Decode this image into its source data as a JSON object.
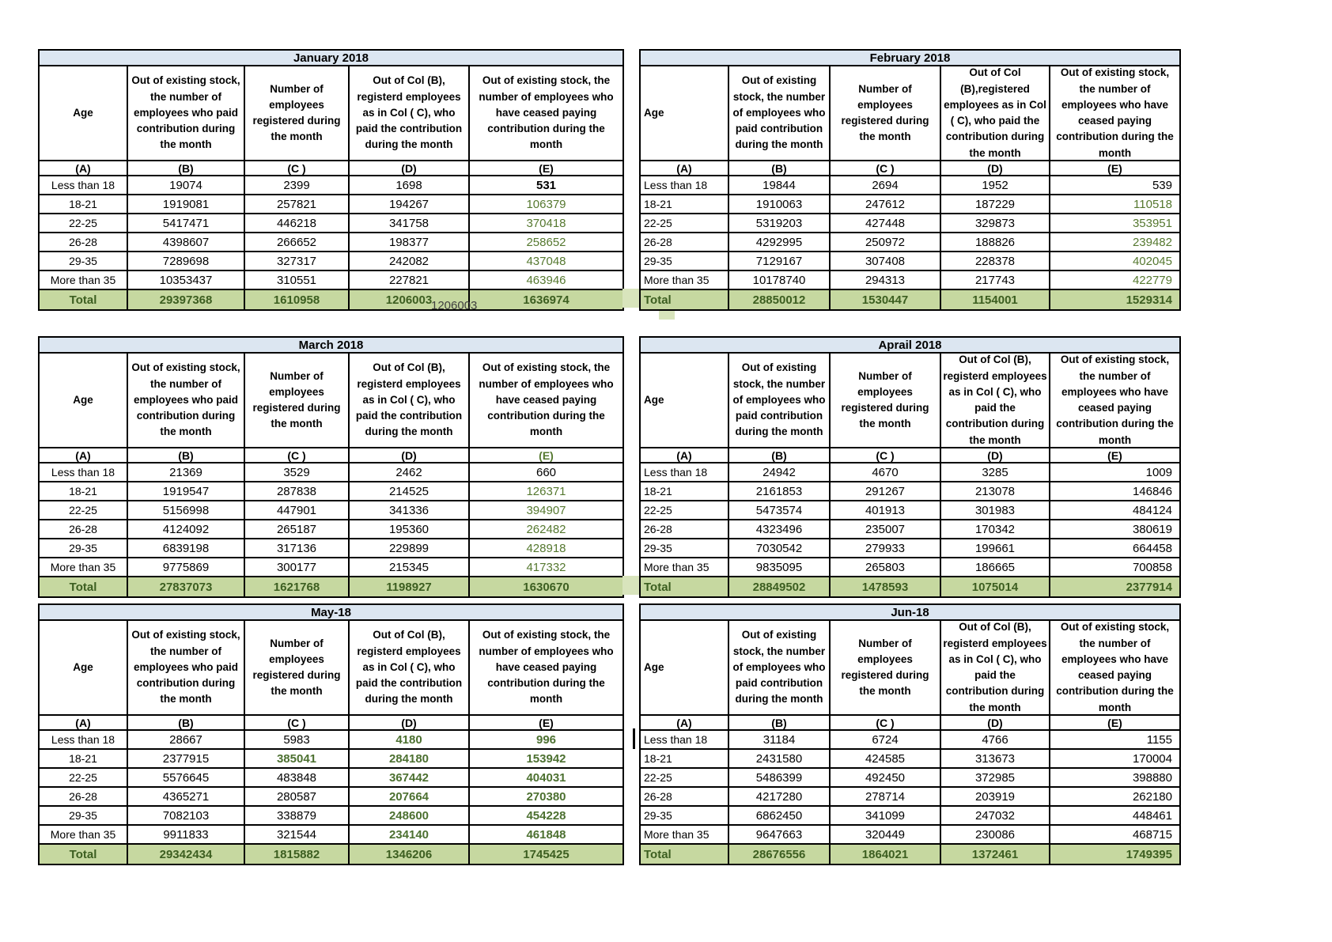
{
  "colors": {
    "title_bar_bg": "#dce6f1",
    "total_row_bg": "#c6d8a0",
    "green_text": "#55782f",
    "total_text": "#3c5e20",
    "border": "#000000"
  },
  "artifact": {
    "overflow_number": "1206003"
  },
  "tables": [
    {
      "title": "January 2018",
      "side": "left",
      "headers": {
        "age": "Age",
        "b": "Out of existing stock, the number of employees who paid contribution during the month",
        "c": "Number of employees registered during the month",
        "d": "Out of Col (B), registerd employees as in Col ( C), who paid the contribution during the month",
        "e": "Out of existing stock, the number of  employees  who have ceased paying contribution during the month"
      },
      "letters": {
        "age": "(A)",
        "b": "(B)",
        "c": "(C )",
        "d": "(D)",
        "e": "(E)"
      },
      "rows": [
        {
          "age": "Less than 18",
          "b": "19074",
          "c": "2399",
          "d": "1698",
          "e": "531",
          "s": {
            "e": "bb"
          }
        },
        {
          "age": "18-21",
          "b": "1919081",
          "c": "257821",
          "d": "194267",
          "e": "106379",
          "s": {
            "e": "g"
          }
        },
        {
          "age": "22-25",
          "b": "5417471",
          "c": "446218",
          "d": "341758",
          "e": "370418",
          "s": {
            "e": "g"
          }
        },
        {
          "age": "26-28",
          "b": "4398607",
          "c": "266652",
          "d": "198377",
          "e": "258652",
          "s": {
            "e": "g"
          }
        },
        {
          "age": "29-35",
          "b": "7289698",
          "c": "327317",
          "d": "242082",
          "e": "437048",
          "s": {
            "e": "g"
          }
        },
        {
          "age": "More than 35",
          "b": "10353437",
          "c": "310551",
          "d": "227821",
          "e": "463946",
          "s": {
            "e": "g"
          }
        }
      ],
      "total": {
        "label": "Total",
        "b": "29397368",
        "c": "1610958",
        "d": "1206003",
        "e": "1636974"
      }
    },
    {
      "title": "February 2018",
      "side": "right",
      "headers": {
        "age": "Age",
        "b": "Out of existing stock, the number of employees who paid contribution during the month",
        "c": "Number of employees registered during the month",
        "d": "Out of Col (B),registered employees as in Col ( C), who paid the contribution during the month",
        "e": "Out of existing stock, the number of employees  who have ceased paying contribution during the month"
      },
      "letters": {
        "age": "(A)",
        "b": "(B)",
        "c": "(C )",
        "d": "(D)",
        "e": "(E)"
      },
      "rows": [
        {
          "age": "Less than 18",
          "b": "19844",
          "c": "2694",
          "d": "1952",
          "e": "539"
        },
        {
          "age": "18-21",
          "b": "1910063",
          "c": "247612",
          "d": "187229",
          "e": "110518",
          "s": {
            "e": "g"
          }
        },
        {
          "age": "22-25",
          "b": "5319203",
          "c": "427448",
          "d": "329873",
          "e": "353951",
          "s": {
            "e": "g"
          }
        },
        {
          "age": "26-28",
          "b": "4292995",
          "c": "250972",
          "d": "188826",
          "e": "239482",
          "s": {
            "e": "g"
          }
        },
        {
          "age": "29-35",
          "b": "7129167",
          "c": "307408",
          "d": "228378",
          "e": "402045",
          "s": {
            "e": "g"
          }
        },
        {
          "age": "More than 35",
          "b": "10178740",
          "c": "294313",
          "d": "217743",
          "e": "422779",
          "s": {
            "e": "g"
          }
        }
      ],
      "total": {
        "label": "Total",
        "b": "28850012",
        "c": "1530447",
        "d": "1154001",
        "e": "1529314"
      }
    },
    {
      "title": "March 2018",
      "side": "left",
      "headers": {
        "age": "Age",
        "b": "Out of existing stock, the number of employees who paid contribution during the month",
        "c": "Number of employees registered during the month",
        "d": "Out of Col (B), registerd employees as in Col ( C), who paid the contribution during the month",
        "e": "Out of existing stock, the number of  employees  who have ceased paying contribution during the month"
      },
      "letters": {
        "age": "(A)",
        "b": "(B)",
        "c": "(C )",
        "d": "(D)",
        "e": "(E)"
      },
      "letters_style": {
        "e": "lg"
      },
      "rows": [
        {
          "age": "Less than 18",
          "b": "21369",
          "c": "3529",
          "d": "2462",
          "e": "660"
        },
        {
          "age": "18-21",
          "b": "1919547",
          "c": "287838",
          "d": "214525",
          "e": "126371",
          "s": {
            "e": "g"
          }
        },
        {
          "age": "22-25",
          "b": "5156998",
          "c": "447901",
          "d": "341336",
          "e": "394907",
          "s": {
            "e": "g"
          }
        },
        {
          "age": "26-28",
          "b": "4124092",
          "c": "265187",
          "d": "195360",
          "e": "262482",
          "s": {
            "e": "g"
          }
        },
        {
          "age": "29-35",
          "b": "6839198",
          "c": "317136",
          "d": "229899",
          "e": "428918",
          "s": {
            "e": "g"
          }
        },
        {
          "age": "More than 35",
          "b": "9775869",
          "c": "300177",
          "d": "215345",
          "e": "417332",
          "s": {
            "e": "g"
          }
        }
      ],
      "total": {
        "label": "Total",
        "b": "27837073",
        "c": "1621768",
        "d": "1198927",
        "e": "1630670"
      }
    },
    {
      "title": "Aprail 2018",
      "side": "right",
      "headers": {
        "age": "Age",
        "b": "Out of existing stock, the number of employees who paid contribution during the month",
        "c": "Number of employees registered during the month",
        "d": "Out of Col (B), registerd employees as in Col ( C), who paid the contribution during the month",
        "e": "Out of existing stock, the number of employees  who have ceased paying contribution during the month"
      },
      "letters": {
        "age": "(A)",
        "b": "(B)",
        "c": "(C )",
        "d": "(D)",
        "e": "(E)"
      },
      "rows": [
        {
          "age": "Less than 18",
          "b": "24942",
          "c": "4670",
          "d": "3285",
          "e": "1009"
        },
        {
          "age": "18-21",
          "b": "2161853",
          "c": "291267",
          "d": "213078",
          "e": "146846"
        },
        {
          "age": "22-25",
          "b": "5473574",
          "c": "401913",
          "d": "301983",
          "e": "484124"
        },
        {
          "age": "26-28",
          "b": "4323496",
          "c": "235007",
          "d": "170342",
          "e": "380619"
        },
        {
          "age": "29-35",
          "b": "7030542",
          "c": "279933",
          "d": "199661",
          "e": "664458"
        },
        {
          "age": "More than 35",
          "b": "9835095",
          "c": "265803",
          "d": "186665",
          "e": "700858"
        }
      ],
      "total": {
        "label": "Total",
        "b": "28849502",
        "c": "1478593",
        "d": "1075014",
        "e": "2377914"
      }
    },
    {
      "title": "May-18",
      "side": "left",
      "headers": {
        "age": "Age",
        "b": "Out of existing stock, the number of employees who paid contribution during the month",
        "c": "Number of employees registered during the month",
        "d": "Out of Col (B), registerd employees as in Col ( C), who paid the contribution during the month",
        "e": "Out of existing stock, the number of  employees  who have ceased paying contribution during the month"
      },
      "letters": {
        "age": "(A)",
        "b": "(B)",
        "c": "(C )",
        "d": "(D)",
        "e": "(E)"
      },
      "rows": [
        {
          "age": "Less than 18",
          "b": "28667",
          "c": "5983",
          "d": "4180",
          "e": "996",
          "s": {
            "d": "gb",
            "e": "gb"
          }
        },
        {
          "age": "18-21",
          "b": "2377915",
          "c": "385041",
          "d": "284180",
          "e": "153942",
          "s": {
            "c": "gb",
            "d": "gb",
            "e": "gb"
          }
        },
        {
          "age": "22-25",
          "b": "5576645",
          "c": "483848",
          "d": "367442",
          "e": "404031",
          "s": {
            "d": "gb",
            "e": "gb"
          }
        },
        {
          "age": "26-28",
          "b": "4365271",
          "c": "280587",
          "d": "207664",
          "e": "270380",
          "s": {
            "d": "gb",
            "e": "gb"
          }
        },
        {
          "age": "29-35",
          "b": "7082103",
          "c": "338879",
          "d": "248600",
          "e": "454228",
          "s": {
            "d": "gb",
            "e": "gb"
          }
        },
        {
          "age": "More than 35",
          "b": "9911833",
          "c": "321544",
          "d": "234140",
          "e": "461848",
          "s": {
            "d": "gb",
            "e": "gb"
          }
        }
      ],
      "total": {
        "label": "Total",
        "b": "29342434",
        "c": "1815882",
        "d": "1346206",
        "e": "1745425"
      }
    },
    {
      "title": "Jun-18",
      "side": "right",
      "headers": {
        "age": "Age",
        "b": "Out of existing stock, the number of employees who paid contribution during the month",
        "c": "Number of employees registered during the month",
        "d": "Out of Col (B), registerd employees as in Col ( C), who paid the contribution during the month",
        "e": "Out of existing stock, the number of employees  who have ceased paying contribution during the month"
      },
      "letters": {
        "age": "(A)",
        "b": "(B)",
        "c": "(C )",
        "d": "(D)",
        "e": "(E)"
      },
      "rows": [
        {
          "age": "Less than 18",
          "b": "31184",
          "c": "6724",
          "d": "4766",
          "e": "1155"
        },
        {
          "age": "18-21",
          "b": "2431580",
          "c": "424585",
          "d": "313673",
          "e": "170004"
        },
        {
          "age": "22-25",
          "b": "5486399",
          "c": "492450",
          "d": "372985",
          "e": "398880"
        },
        {
          "age": "26-28",
          "b": "4217280",
          "c": "278714",
          "d": "203919",
          "e": "262180"
        },
        {
          "age": "29-35",
          "b": "6862450",
          "c": "341099",
          "d": "247032",
          "e": "448461"
        },
        {
          "age": "More than 35",
          "b": "9647663",
          "c": "320449",
          "d": "230086",
          "e": "468715"
        }
      ],
      "total": {
        "label": "Total",
        "b": "28676556",
        "c": "1864021",
        "d": "1372461",
        "e": "1749395"
      }
    }
  ]
}
